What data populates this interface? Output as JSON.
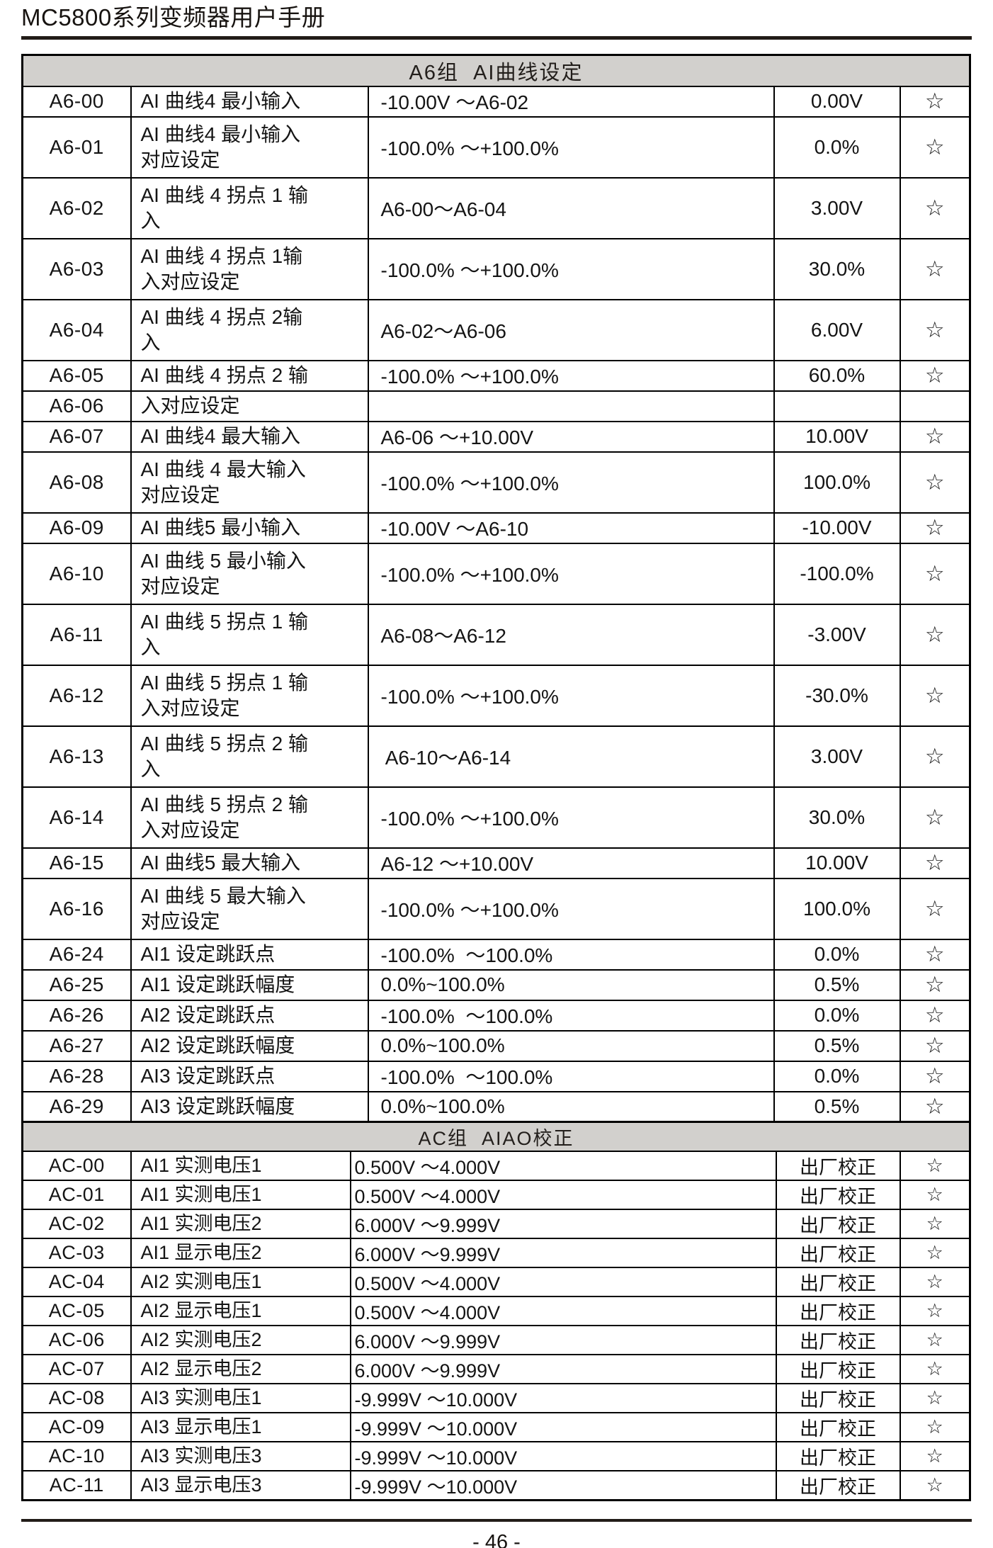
{
  "page": {
    "header_title": "MC5800系列变频器用户手册",
    "footer_page_number": "- 46 -"
  },
  "star_glyph": "☆",
  "tables": [
    {
      "id": "a6",
      "section_title": "A6组  AI曲线设定",
      "rows": [
        {
          "code": "A6-00",
          "name": "AI 曲线4 最小输入",
          "range": "-10.00V ～A6-02",
          "default": "0.00V",
          "star": "☆"
        },
        {
          "code": "A6-01",
          "name": "AI 曲线4 最小输入\n对应设定",
          "range": "-100.0% ～+100.0%",
          "default": "0.0%",
          "star": "☆"
        },
        {
          "code": "A6-02",
          "name": "AI 曲线 4 拐点 1 输\n入",
          "range": "A6-00～A6-04",
          "default": "3.00V",
          "star": "☆"
        },
        {
          "code": "A6-03",
          "name": "AI 曲线 4 拐点 1输\n入对应设定",
          "range": "-100.0% ～+100.0%",
          "default": "30.0%",
          "star": "☆"
        },
        {
          "code": "A6-04",
          "name": "AI 曲线 4 拐点 2输\n入",
          "range": "A6-02～A6-06",
          "default": "6.00V",
          "star": "☆"
        },
        {
          "code": "A6-05",
          "name": "AI 曲线 4 拐点 2 输",
          "range": "-100.0% ～+100.0%",
          "default": "60.0%",
          "star": "☆"
        },
        {
          "code": "A6-06",
          "name": "入对应设定",
          "range": "",
          "default": "",
          "star": ""
        },
        {
          "code": "A6-07",
          "name": "AI 曲线4 最大输入",
          "range": "A6-06 ～+10.00V",
          "default": "10.00V",
          "star": "☆"
        },
        {
          "code": "A6-08",
          "name": "AI 曲线  4 最大输入\n对应设定",
          "range": "-100.0% ～+100.0%",
          "default": "100.0%",
          "star": "☆"
        },
        {
          "code": "A6-09",
          "name": "AI 曲线5 最小输入",
          "range": "-10.00V ～A6-10",
          "default": "-10.00V",
          "star": "☆"
        },
        {
          "code": "A6-10",
          "name": "AI 曲线  5 最小输入\n对应设定",
          "range": "-100.0% ～+100.0%",
          "default": "-100.0%",
          "star": "☆"
        },
        {
          "code": "A6-11",
          "name": "AI 曲线 5 拐点 1 输\n入",
          "range": "A6-08～A6-12",
          "default": "-3.00V",
          "star": "☆"
        },
        {
          "code": "A6-12",
          "name": "AI 曲线 5 拐点 1 输\n入对应设定",
          "range": "-100.0% ～+100.0%",
          "default": "-30.0%",
          "star": "☆"
        },
        {
          "code": "A6-13",
          "name": "AI 曲线 5 拐点 2 输\n入",
          "range": " A6-10～A6-14",
          "default": "3.00V",
          "star": "☆"
        },
        {
          "code": "A6-14",
          "name": "AI 曲线 5 拐点 2 输\n入对应设定",
          "range": "-100.0% ～+100.0%",
          "default": "30.0%",
          "star": "☆"
        },
        {
          "code": "A6-15",
          "name": "AI 曲线5 最大输入",
          "range": "A6-12 ～+10.00V",
          "default": "10.00V",
          "star": "☆"
        },
        {
          "code": "A6-16",
          "name": "AI 曲线  5 最大输入\n对应设定",
          "range": "-100.0% ～+100.0%",
          "default": "100.0%",
          "star": "☆"
        },
        {
          "code": "A6-24",
          "name": "AI1 设定跳跃点",
          "range": "-100.0%  ～100.0%",
          "default": "0.0%",
          "star": "☆"
        },
        {
          "code": "A6-25",
          "name": "AI1 设定跳跃幅度",
          "range": "0.0%~100.0%",
          "default": "0.5%",
          "star": "☆"
        },
        {
          "code": "A6-26",
          "name": "AI2 设定跳跃点",
          "range": "-100.0%  ～100.0%",
          "default": "0.0%",
          "star": "☆"
        },
        {
          "code": "A6-27",
          "name": "AI2 设定跳跃幅度",
          "range": "0.0%~100.0%",
          "default": "0.5%",
          "star": "☆"
        },
        {
          "code": "A6-28",
          "name": "AI3 设定跳跃点",
          "range": "-100.0%  ～100.0%",
          "default": "0.0%",
          "star": "☆"
        },
        {
          "code": "A6-29",
          "name": "AI3 设定跳跃幅度",
          "range": "0.0%~100.0%",
          "default": "0.5%",
          "star": "☆"
        }
      ]
    },
    {
      "id": "ac",
      "section_title": "AC组  AIAO校正",
      "rows": [
        {
          "code": "AC-00",
          "name": "AI1 实测电压1",
          "range": "0.500V ～4.000V",
          "default": "出厂校正",
          "star": "☆"
        },
        {
          "code": "AC-01",
          "name": "AI1 实测电压1",
          "range": "0.500V ～4.000V",
          "default": "出厂校正",
          "star": "☆"
        },
        {
          "code": "AC-02",
          "name": "AI1 实测电压2",
          "range": "6.000V ～9.999V",
          "default": "出厂校正",
          "star": "☆"
        },
        {
          "code": "AC-03",
          "name": "AI1 显示电压2",
          "range": "6.000V ～9.999V",
          "default": "出厂校正",
          "star": "☆"
        },
        {
          "code": "AC-04",
          "name": "AI2 实测电压1",
          "range": "0.500V ～4.000V",
          "default": "出厂校正",
          "star": "☆"
        },
        {
          "code": "AC-05",
          "name": "AI2 显示电压1",
          "range": "0.500V ～4.000V",
          "default": "出厂校正",
          "star": "☆"
        },
        {
          "code": "AC-06",
          "name": "AI2 实测电压2",
          "range": "6.000V ～9.999V",
          "default": "出厂校正",
          "star": "☆"
        },
        {
          "code": "AC-07",
          "name": "AI2 显示电压2",
          "range": "6.000V ～9.999V",
          "default": "出厂校正",
          "star": "☆"
        },
        {
          "code": "AC-08",
          "name": "AI3 实测电压1",
          "range": "-9.999V ～10.000V",
          "default": "出厂校正",
          "star": "☆"
        },
        {
          "code": "AC-09",
          "name": "AI3 显示电压1",
          "range": "-9.999V ～10.000V",
          "default": "出厂校正",
          "star": "☆"
        },
        {
          "code": "AC-10",
          "name": "AI3 实测电压3",
          "range": "-9.999V ～10.000V",
          "default": "出厂校正",
          "star": "☆"
        },
        {
          "code": "AC-11",
          "name": "AI3 显示电压3",
          "range": "-9.999V ～10.000V",
          "default": "出厂校正",
          "star": "☆"
        }
      ]
    }
  ]
}
